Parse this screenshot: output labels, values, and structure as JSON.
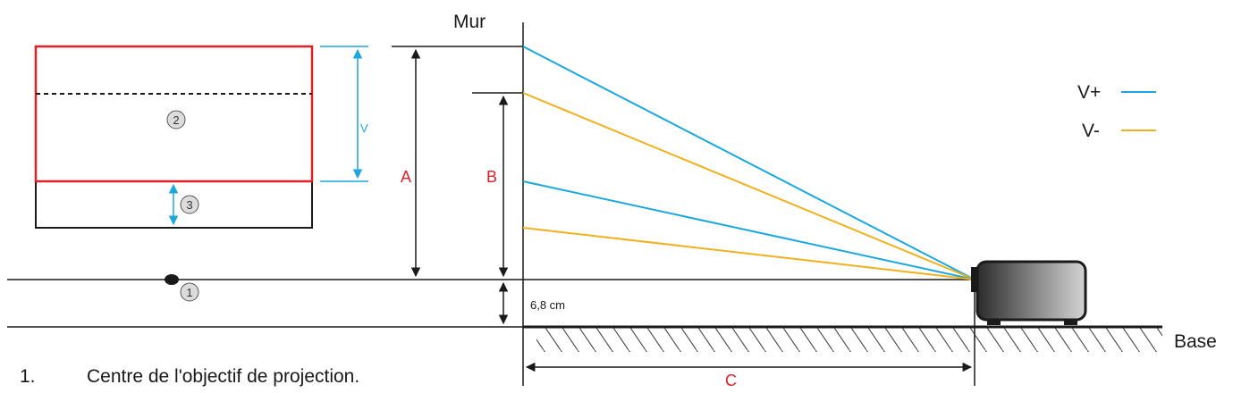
{
  "labels": {
    "wall": "Mur",
    "base": "Base",
    "v": "V",
    "a": "A",
    "b": "B",
    "c": "C",
    "offset": "6,8 cm",
    "marker_1": "1",
    "marker_2": "2",
    "marker_3": "3"
  },
  "legend": [
    {
      "label": "V+",
      "color": "#1aa7e0"
    },
    {
      "label": "V-",
      "color": "#f2b01e"
    }
  ],
  "footnote": {
    "number": "1.",
    "text": "Centre de l'objectif de projection."
  },
  "colors": {
    "screen_outline": "#e01f26",
    "dimension_label": "#e01f26",
    "v_plus": "#1aa7e0",
    "v_minus": "#f2b01e",
    "lines": "#1a1a1a"
  }
}
